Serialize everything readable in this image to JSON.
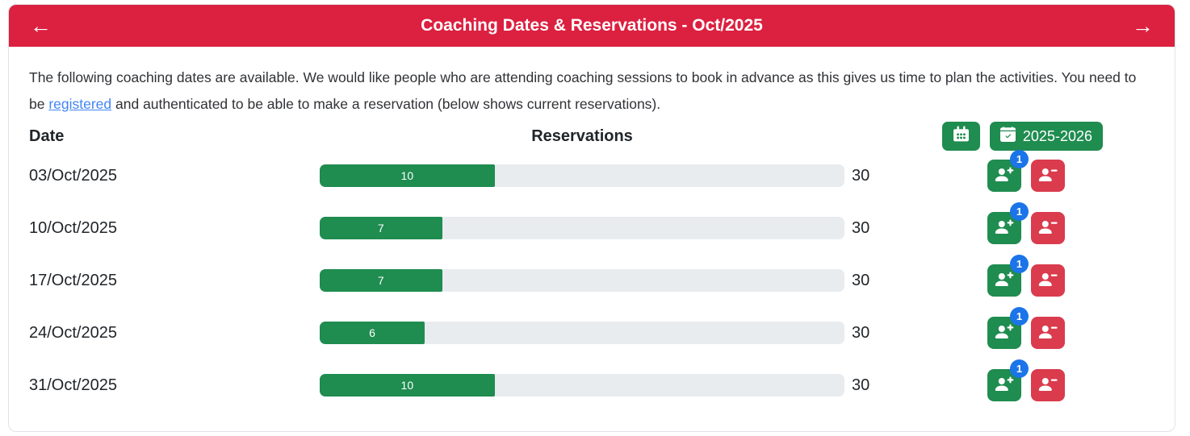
{
  "colors": {
    "header_red": "#dc2040",
    "button_green": "#1f8c50",
    "button_red": "#da3b4d",
    "badge_blue": "#1b74e8",
    "link_blue": "#4285f4",
    "track_gray": "#e9ecef",
    "text_dark": "#212529"
  },
  "header": {
    "title": "Coaching Dates & Reservations - Oct/2025",
    "prev_arrow": "←",
    "next_arrow": "→"
  },
  "intro": {
    "before_link": "The following coaching dates are available. We would like people who are attending coaching sessions to book in advance as this gives us time to plan the activities. You need to be ",
    "link_text": "registered",
    "after_link": " and authenticated to be able to make a reservation (below shows current reservations)."
  },
  "columns": {
    "date": "Date",
    "reservations": "Reservations"
  },
  "toolbar": {
    "calendar_button_icon": "calendar-icon",
    "season_button_label": "2025-2026",
    "season_button_icon": "calendar-check-icon"
  },
  "row_icons": {
    "add": "person-plus-icon",
    "remove": "person-minus-icon"
  },
  "rows": [
    {
      "date": "03/Oct/2025",
      "reserved": 10,
      "capacity": 30,
      "badge": "1"
    },
    {
      "date": "10/Oct/2025",
      "reserved": 7,
      "capacity": 30,
      "badge": "1"
    },
    {
      "date": "17/Oct/2025",
      "reserved": 7,
      "capacity": 30,
      "badge": "1"
    },
    {
      "date": "24/Oct/2025",
      "reserved": 6,
      "capacity": 30,
      "badge": "1"
    },
    {
      "date": "31/Oct/2025",
      "reserved": 10,
      "capacity": 30,
      "badge": "1"
    }
  ]
}
